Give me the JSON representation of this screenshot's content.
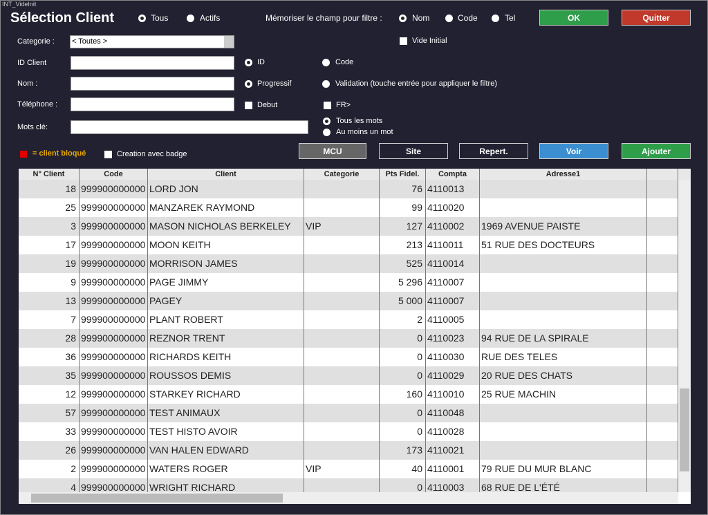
{
  "window_caption": "INT_VideInit",
  "header": {
    "title": "Sélection Client",
    "filter_options": [
      "Tous",
      "Actifs"
    ],
    "memorize_label": "Mémoriser le champ pour filtre :",
    "memorize_options": [
      "Nom",
      "Code",
      "Tel"
    ],
    "ok": "OK",
    "quit": "Quitter"
  },
  "form": {
    "categorie_label": "Categorie :",
    "categorie_value": "< Toutes >",
    "vide_initial": "Vide Initial",
    "id_label": "ID Client",
    "nom_label": "Nom :",
    "tel_label": "Téléphone :",
    "mots_label": "Mots clé:",
    "opt_id": "ID",
    "opt_code": "Code",
    "opt_progressif": "Progressif",
    "opt_validation": "Validation (touche entrée pour appliquer le filtre)",
    "opt_debut": "Debut",
    "opt_fr": "FR>",
    "opt_tous_mots": "Tous les mots",
    "opt_un_mot": "Au moins un mot"
  },
  "legend": {
    "blocked": "= client bloqué",
    "badge": "Creation avec badge"
  },
  "buttons": [
    "MCU",
    "Site",
    "Repert.",
    "Voir",
    "Ajouter"
  ],
  "table": {
    "columns": [
      "N° Client",
      "Code",
      "Client",
      "Categorie",
      "Pts Fidel.",
      "Compta",
      "Adresse1"
    ],
    "rows": [
      [
        "18",
        "999900000000",
        "LORD JON",
        null,
        "76",
        "4110013",
        null
      ],
      [
        "25",
        "999900000000",
        "MANZAREK RAYMOND",
        null,
        "99",
        "4110020",
        null
      ],
      [
        "3",
        "999900000000",
        "MASON NICHOLAS BERKELEY",
        "VIP",
        "127",
        "4110002",
        "1969 AVENUE PAISTE"
      ],
      [
        "17",
        "999900000000",
        "MOON KEITH",
        null,
        "213",
        "4110011",
        "51 RUE DES DOCTEURS"
      ],
      [
        "19",
        "999900000000",
        "MORRISON JAMES",
        null,
        "525",
        "4110014",
        null
      ],
      [
        "9",
        "999900000000",
        "PAGE JIMMY",
        null,
        "5 296",
        "4110007",
        null
      ],
      [
        "13",
        "999900000000",
        "PAGEY",
        null,
        "5 000",
        "4110007",
        null
      ],
      [
        "7",
        "999900000000",
        "PLANT  ROBERT",
        null,
        "2",
        "4110005",
        null
      ],
      [
        "28",
        "999900000000",
        "REZNOR TRENT",
        null,
        "0",
        "4110023",
        "94 RUE DE LA SPIRALE"
      ],
      [
        "36",
        "999900000000",
        "RICHARDS KEITH",
        null,
        "0",
        "4110030",
        "RUE DES TELES"
      ],
      [
        "35",
        "999900000000",
        "ROUSSOS DEMIS",
        null,
        "0",
        "4110029",
        "20 RUE DES CHATS"
      ],
      [
        "12",
        "999900000000",
        "STARKEY RICHARD",
        null,
        "160",
        "4110010",
        "25 RUE MACHIN"
      ],
      [
        "57",
        "999900000000",
        "TEST ANIMAUX",
        null,
        "0",
        "4110048",
        null
      ],
      [
        "33",
        "999900000000",
        "TEST HISTO AVOIR",
        null,
        "0",
        "4110028",
        null
      ],
      [
        "26",
        "999900000000",
        "VAN HALEN EDWARD",
        null,
        "173",
        "4110021",
        null
      ],
      [
        "2",
        "999900000000",
        "WATERS ROGER",
        "VIP",
        "40",
        "4110001",
        "79 RUE DU MUR BLANC"
      ],
      [
        "4",
        "999900000000",
        "WRIGHT RICHARD",
        null,
        "0",
        "4110003",
        "68 RUE DE L'ÉTÉ"
      ]
    ]
  }
}
